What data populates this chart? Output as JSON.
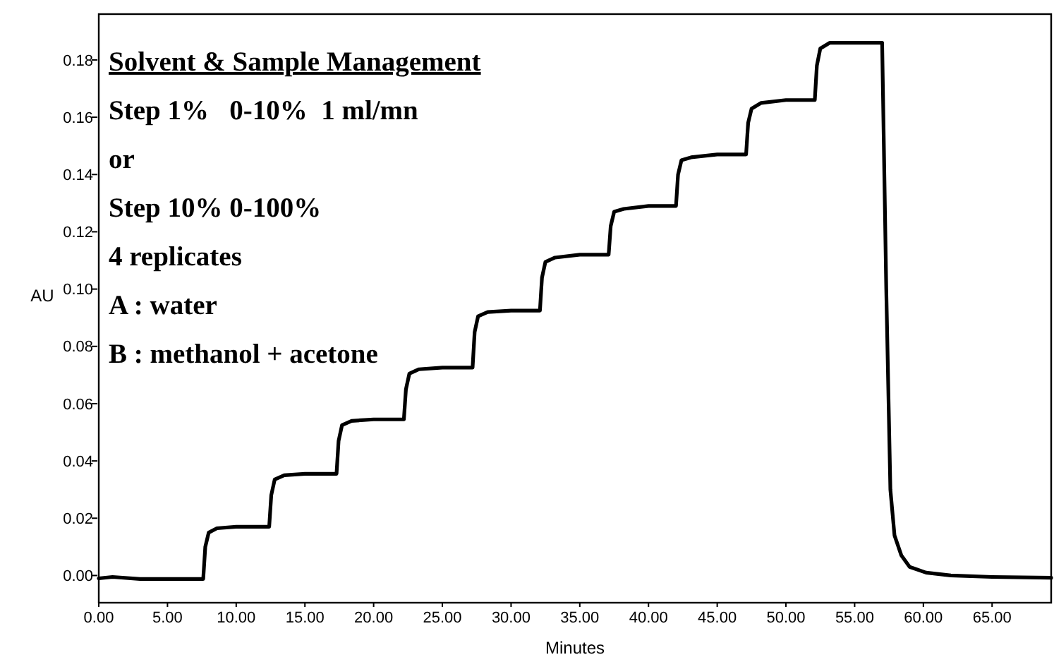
{
  "chart_data": {
    "type": "line",
    "xlabel": "Minutes",
    "ylabel": "AU",
    "annotations": [
      "Solvent & Sample Management",
      "Step 1%   0-10%  1 ml/mn",
      "or",
      "Step 10% 0-100%",
      "4 replicates",
      "A : water",
      "B : methanol + acetone"
    ],
    "xlim": [
      0,
      69.3
    ],
    "ylim": [
      -0.0095,
      0.196
    ],
    "xticks": [
      {
        "value": 0,
        "label": "0.00"
      },
      {
        "value": 5,
        "label": "5.00"
      },
      {
        "value": 10,
        "label": "10.00"
      },
      {
        "value": 15,
        "label": "15.00"
      },
      {
        "value": 20,
        "label": "20.00"
      },
      {
        "value": 25,
        "label": "25.00"
      },
      {
        "value": 30,
        "label": "30.00"
      },
      {
        "value": 35,
        "label": "35.00"
      },
      {
        "value": 40,
        "label": "40.00"
      },
      {
        "value": 45,
        "label": "45.00"
      },
      {
        "value": 50,
        "label": "50.00"
      },
      {
        "value": 55,
        "label": "55.00"
      },
      {
        "value": 60,
        "label": "60.00"
      },
      {
        "value": 65,
        "label": "65.00"
      }
    ],
    "yticks": [
      {
        "value": 0,
        "label": "0.00"
      },
      {
        "value": 0.02,
        "label": "0.02"
      },
      {
        "value": 0.04,
        "label": "0.04"
      },
      {
        "value": 0.06,
        "label": "0.06"
      },
      {
        "value": 0.08,
        "label": "0.08"
      },
      {
        "value": 0.1,
        "label": "0.10"
      },
      {
        "value": 0.12,
        "label": "0.12"
      },
      {
        "value": 0.14,
        "label": "0.14"
      },
      {
        "value": 0.16,
        "label": "0.16"
      },
      {
        "value": 0.18,
        "label": "0.18"
      }
    ],
    "grid": false,
    "series": [
      {
        "color": "#000000",
        "x": [
          0,
          1,
          3,
          7.6,
          7.75,
          8.0,
          8.6,
          10,
          12.4,
          12.55,
          12.8,
          13.5,
          15,
          17.3,
          17.45,
          17.7,
          18.4,
          20,
          22.2,
          22.35,
          22.6,
          23.3,
          25,
          27.2,
          27.35,
          27.6,
          28.3,
          30,
          32.1,
          32.25,
          32.5,
          33.2,
          35,
          37.1,
          37.25,
          37.5,
          38.2,
          40,
          42.0,
          42.15,
          42.4,
          43.1,
          45,
          47.1,
          47.25,
          47.5,
          48.2,
          50,
          52.1,
          52.25,
          52.5,
          53.2,
          55,
          57.0,
          57.3,
          57.6,
          57.9,
          58.4,
          59.0,
          60.2,
          62,
          65,
          69.3
        ],
        "values": [
          -0.001,
          -0.0005,
          -0.0012,
          -0.0012,
          0.01,
          0.015,
          0.0165,
          0.017,
          0.017,
          0.028,
          0.0335,
          0.035,
          0.0355,
          0.0355,
          0.047,
          0.0525,
          0.054,
          0.0545,
          0.0545,
          0.065,
          0.0705,
          0.072,
          0.0726,
          0.0726,
          0.085,
          0.0905,
          0.092,
          0.0925,
          0.0925,
          0.104,
          0.1095,
          0.111,
          0.112,
          0.112,
          0.122,
          0.127,
          0.128,
          0.129,
          0.129,
          0.14,
          0.145,
          0.146,
          0.147,
          0.147,
          0.158,
          0.163,
          0.165,
          0.166,
          0.166,
          0.178,
          0.184,
          0.186,
          0.186,
          0.186,
          0.1,
          0.03,
          0.014,
          0.007,
          0.003,
          0.001,
          0.0,
          -0.0005,
          -0.0008
        ]
      }
    ]
  }
}
